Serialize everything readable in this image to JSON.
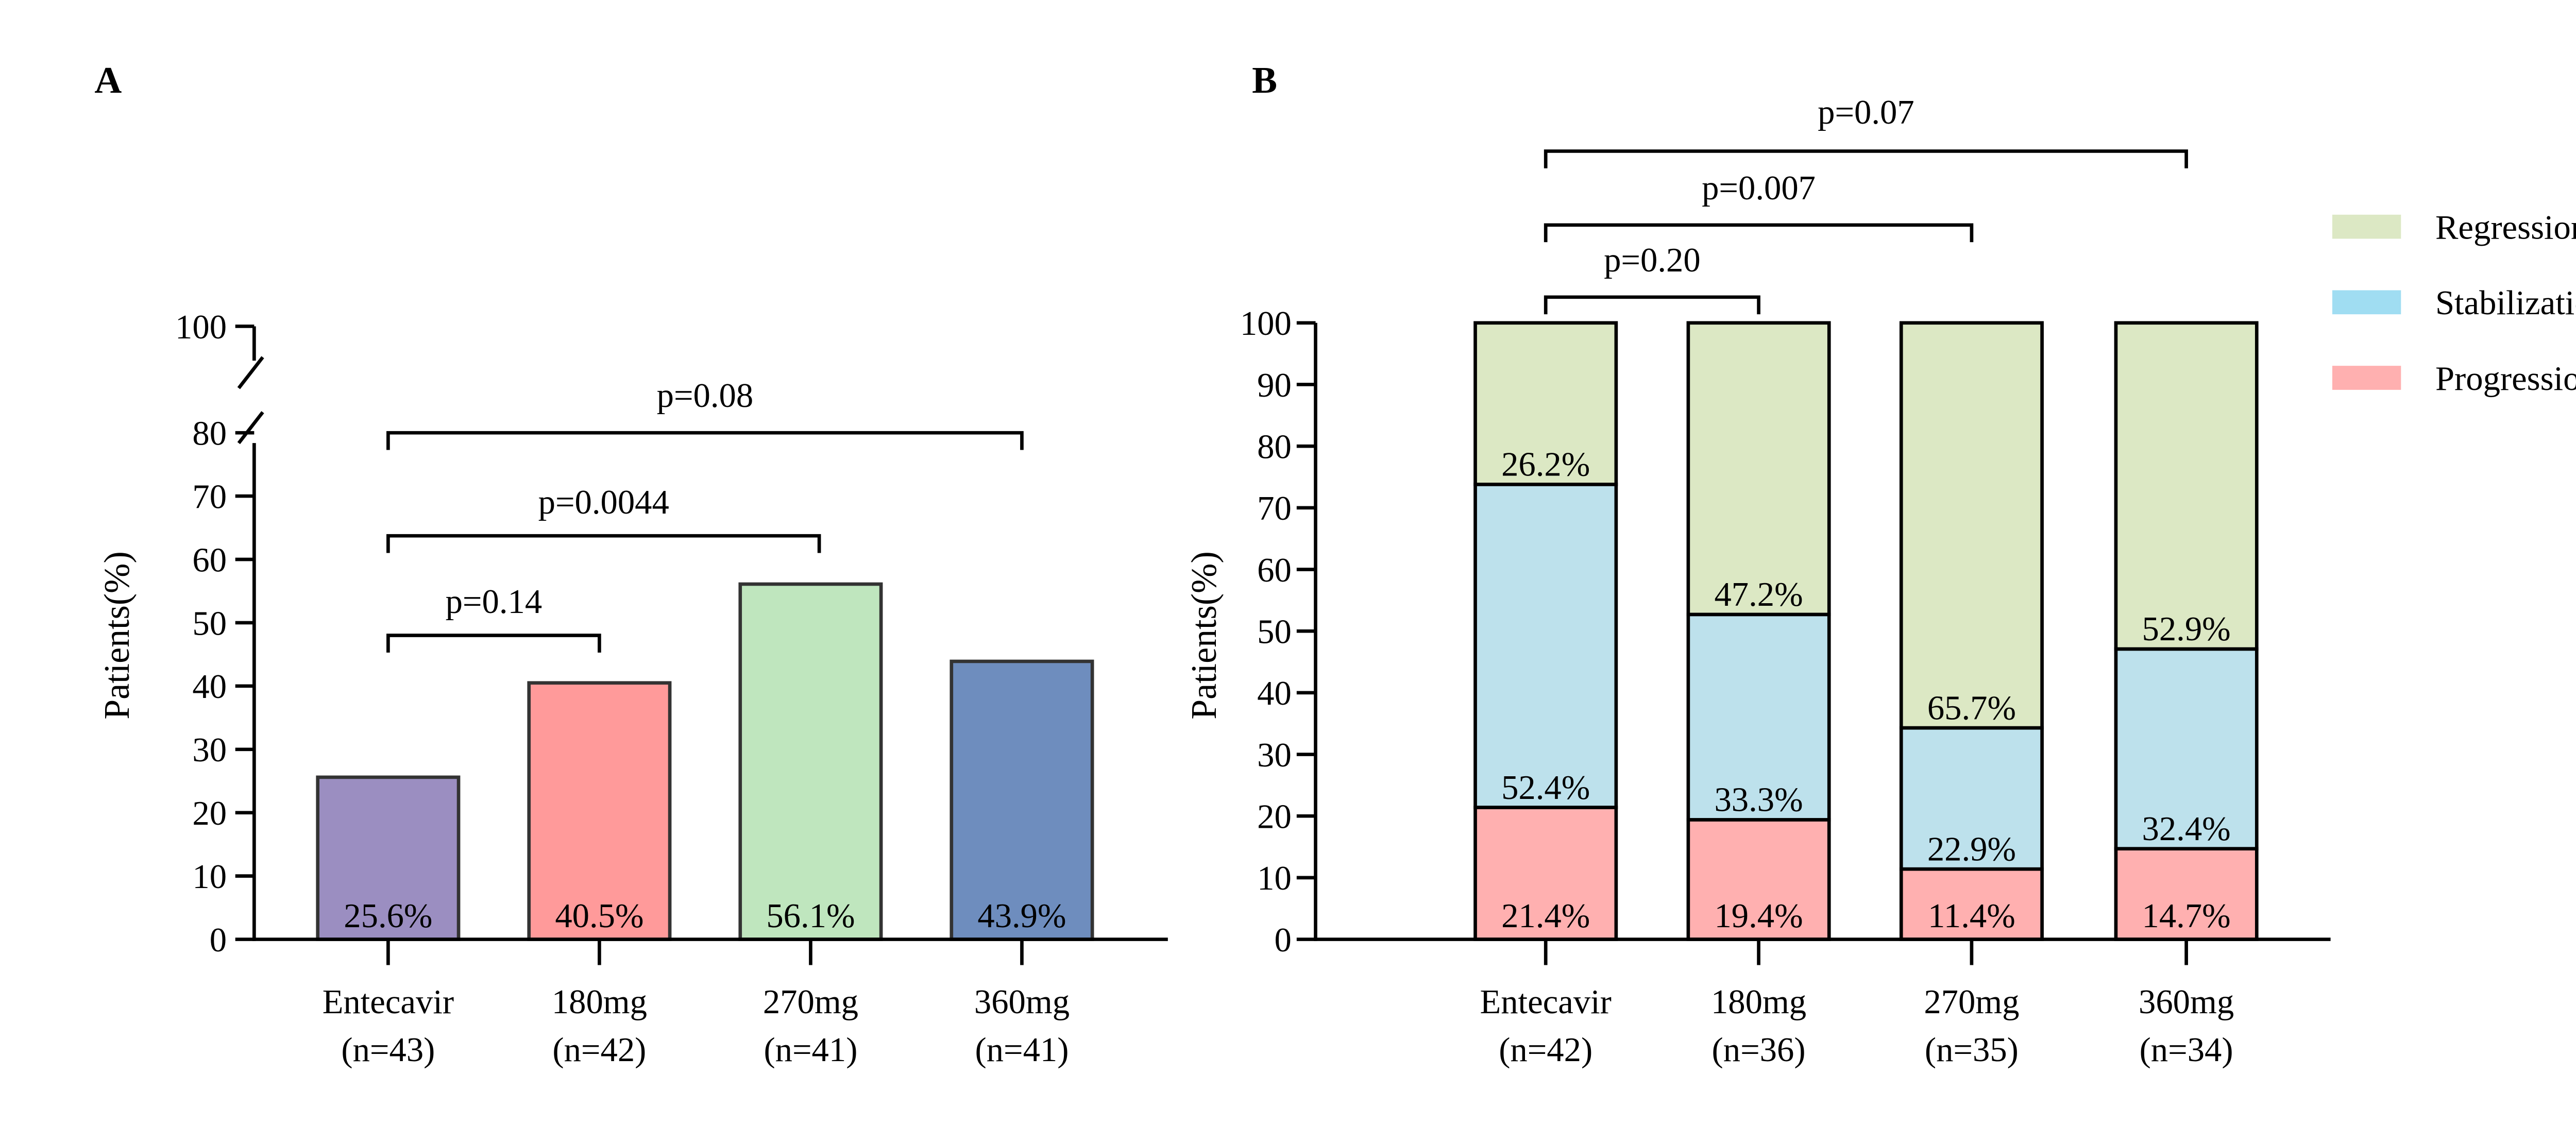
{
  "chart_data": [
    {
      "panel_label": "A",
      "type": "bar",
      "ylabel": "Patients(%)",
      "ylim": [
        0,
        100
      ],
      "axis_break": [
        80,
        100
      ],
      "yticks": [
        0,
        10,
        20,
        30,
        40,
        50,
        60,
        70,
        80,
        100
      ],
      "categories": [
        "Entecavir",
        "180mg",
        "270mg",
        "360mg"
      ],
      "category_n": [
        "(n=43)",
        "(n=42)",
        "(n=41)",
        "(n=41)"
      ],
      "values": [
        25.6,
        40.5,
        56.1,
        43.9
      ],
      "data_labels": [
        "25.6%",
        "40.5%",
        "56.1%",
        "43.9%"
      ],
      "colors": [
        "#9B8EC1",
        "#FF9A9A",
        "#BFE6BE",
        "#6E8DBE"
      ],
      "comparisons": [
        {
          "from": 0,
          "to": 1,
          "label": "p=0.14"
        },
        {
          "from": 0,
          "to": 2,
          "label": "p=0.0044"
        },
        {
          "from": 0,
          "to": 3,
          "label": "p=0.08"
        }
      ]
    },
    {
      "panel_label": "B",
      "type": "stacked-bar",
      "ylabel": "Patients(%)",
      "ylim": [
        0,
        100
      ],
      "yticks": [
        0,
        10,
        20,
        30,
        40,
        50,
        60,
        70,
        80,
        90,
        100
      ],
      "categories": [
        "Entecavir",
        "180mg",
        "270mg",
        "360mg"
      ],
      "category_n": [
        "(n=42)",
        "(n=36)",
        "(n=35)",
        "(n=34)"
      ],
      "series": [
        {
          "name": "Progression",
          "values": [
            21.4,
            19.4,
            11.4,
            14.7
          ],
          "labels": [
            "21.4%",
            "19.4%",
            "11.4%",
            "14.7%"
          ],
          "color": "#FFB0B0"
        },
        {
          "name": "Stabilization",
          "values": [
            52.4,
            33.3,
            22.9,
            32.4
          ],
          "labels": [
            "52.4%",
            "33.3%",
            "22.9%",
            "32.4%"
          ],
          "color": "#BDE1EC"
        },
        {
          "name": "Regression",
          "values": [
            26.2,
            47.2,
            65.7,
            52.9
          ],
          "labels": [
            "26.2%",
            "47.2%",
            "65.7%",
            "52.9%"
          ],
          "color": "#DCE8C4"
        }
      ],
      "legend": {
        "placement": "right",
        "order": [
          "Regression",
          "Stabilization",
          "Progression"
        ],
        "swatch_colors": {
          "Regression": "#DCE8C4",
          "Stabilization": "#A0DDF2",
          "Progression": "#FFB0B0"
        }
      },
      "comparisons": [
        {
          "from": 0,
          "to": 1,
          "label": "p=0.20"
        },
        {
          "from": 0,
          "to": 2,
          "label": "p=0.007"
        },
        {
          "from": 0,
          "to": 3,
          "label": "p=0.07"
        }
      ]
    }
  ]
}
